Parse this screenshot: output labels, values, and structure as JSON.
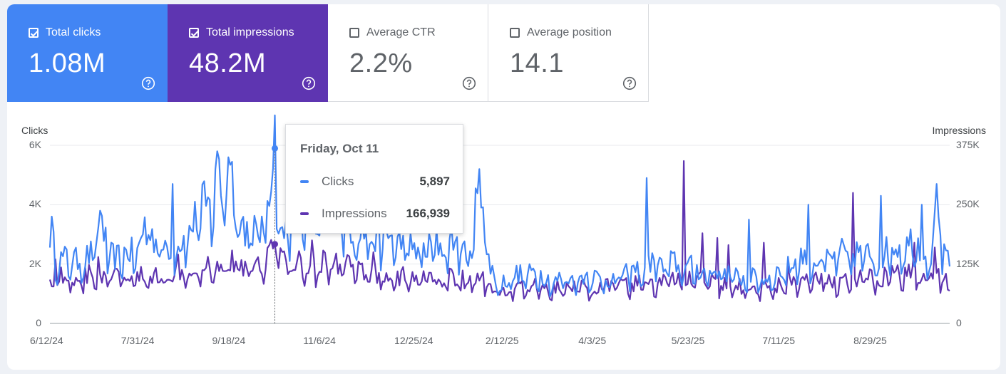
{
  "metrics": [
    {
      "label": "Total clicks",
      "value": "1.08M",
      "checked": true,
      "color": "#4285f4"
    },
    {
      "label": "Total impressions",
      "value": "48.2M",
      "checked": true,
      "color": "#5e35b1"
    },
    {
      "label": "Average CTR",
      "value": "2.2%",
      "checked": false,
      "color": "#ffffff"
    },
    {
      "label": "Average position",
      "value": "14.1",
      "checked": false,
      "color": "#ffffff"
    }
  ],
  "icons": {
    "checkbox": "check-icon",
    "help": "help-circle-icon"
  },
  "tooltip": {
    "date": "Friday, Oct 11",
    "rows": [
      {
        "label": "Clicks",
        "value": "5,897",
        "color": "#4285f4"
      },
      {
        "label": "Impressions",
        "value": "166,939",
        "color": "#5e35b1"
      }
    ]
  },
  "chart_data": {
    "type": "line",
    "left_axis_label": "Clicks",
    "right_axis_label": "Impressions",
    "left_ticks": [
      "0",
      "2K",
      "4K",
      "6K"
    ],
    "right_ticks": [
      "0",
      "125K",
      "250K",
      "375K"
    ],
    "left_range": [
      0,
      6000
    ],
    "right_range": [
      0,
      375000
    ],
    "x_range": [
      "2024-06-12",
      "2025-10-09"
    ],
    "x_ticks": [
      {
        "date": "2024-06-12",
        "label": "6/12/24"
      },
      {
        "date": "2024-07-31",
        "label": "7/31/24"
      },
      {
        "date": "2024-09-18",
        "label": "9/18/24"
      },
      {
        "date": "2024-11-06",
        "label": "11/6/24"
      },
      {
        "date": "2024-12-25",
        "label": "12/25/24"
      },
      {
        "date": "2025-02-12",
        "label": "2/12/25"
      },
      {
        "date": "2025-04-03",
        "label": "4/3/25"
      },
      {
        "date": "2025-05-23",
        "label": "5/23/25"
      },
      {
        "date": "2025-07-11",
        "label": "7/11/25"
      },
      {
        "date": "2025-08-29",
        "label": "8/29/25"
      }
    ],
    "grid": true,
    "highlight": {
      "date": "2024-10-11",
      "clicks": 5897,
      "impressions": 166939
    },
    "series": [
      {
        "name": "Clicks",
        "axis": "left",
        "color": "#4285f4",
        "points": [
          [
            "2024-06-12",
            2900
          ],
          [
            "2024-06-16",
            2000
          ],
          [
            "2024-06-21",
            2100
          ],
          [
            "2024-06-26",
            2000
          ],
          [
            "2024-07-01",
            2100
          ],
          [
            "2024-07-06",
            2300
          ],
          [
            "2024-07-09",
            3800
          ],
          [
            "2024-07-13",
            2200
          ],
          [
            "2024-07-18",
            2100
          ],
          [
            "2024-07-24",
            2300
          ],
          [
            "2024-07-29",
            2200
          ],
          [
            "2024-08-03",
            3500
          ],
          [
            "2024-08-08",
            2600
          ],
          [
            "2024-08-13",
            2500
          ],
          [
            "2024-08-18",
            2400
          ],
          [
            "2024-08-23",
            2700
          ],
          [
            "2024-08-28",
            3200
          ],
          [
            "2024-09-02",
            3800
          ],
          [
            "2024-09-07",
            3600
          ],
          [
            "2024-09-10",
            5800
          ],
          [
            "2024-09-13",
            3800
          ],
          [
            "2024-09-16",
            5600
          ],
          [
            "2024-09-20",
            3800
          ],
          [
            "2024-09-25",
            3000
          ],
          [
            "2024-09-30",
            2900
          ],
          [
            "2024-10-05",
            3100
          ],
          [
            "2024-10-11",
            5897
          ],
          [
            "2024-10-14",
            2700
          ],
          [
            "2024-10-19",
            3200
          ],
          [
            "2024-10-22",
            5600
          ],
          [
            "2024-10-27",
            3300
          ],
          [
            "2024-11-01",
            3100
          ],
          [
            "2024-11-06",
            3200
          ],
          [
            "2024-11-11",
            4800
          ],
          [
            "2024-11-16",
            3400
          ],
          [
            "2024-11-21",
            3100
          ],
          [
            "2024-11-26",
            3000
          ],
          [
            "2024-12-01",
            2800
          ],
          [
            "2024-12-06",
            2700
          ],
          [
            "2024-12-11",
            2800
          ],
          [
            "2024-12-16",
            2600
          ],
          [
            "2024-12-21",
            2500
          ],
          [
            "2024-12-26",
            2400
          ],
          [
            "2024-12-31",
            2300
          ],
          [
            "2025-01-05",
            2600
          ],
          [
            "2025-01-10",
            2400
          ],
          [
            "2025-01-15",
            2700
          ],
          [
            "2025-01-20",
            2300
          ],
          [
            "2025-01-25",
            2300
          ],
          [
            "2025-01-29",
            5200
          ],
          [
            "2025-02-03",
            2000
          ],
          [
            "2025-02-08",
            1200
          ],
          [
            "2025-02-13",
            1400
          ],
          [
            "2025-02-18",
            1600
          ],
          [
            "2025-02-23",
            1500
          ],
          [
            "2025-02-28",
            1700
          ],
          [
            "2025-03-05",
            1500
          ],
          [
            "2025-03-10",
            1300
          ],
          [
            "2025-03-15",
            1500
          ],
          [
            "2025-03-20",
            1400
          ],
          [
            "2025-03-25",
            1500
          ],
          [
            "2025-03-30",
            1600
          ],
          [
            "2025-04-04",
            1400
          ],
          [
            "2025-04-08",
            1400
          ],
          [
            "2025-04-13",
            1500
          ],
          [
            "2025-04-18",
            1600
          ],
          [
            "2025-04-23",
            1700
          ],
          [
            "2025-04-28",
            1600
          ],
          [
            "2025-05-03",
            2200
          ],
          [
            "2025-05-08",
            1700
          ],
          [
            "2025-05-13",
            2000
          ],
          [
            "2025-05-18",
            1800
          ],
          [
            "2025-05-23",
            1800
          ],
          [
            "2025-05-28",
            1700
          ],
          [
            "2025-06-02",
            1600
          ],
          [
            "2025-06-07",
            1800
          ],
          [
            "2025-06-12",
            1600
          ],
          [
            "2025-06-17",
            1500
          ],
          [
            "2025-06-22",
            1400
          ],
          [
            "2025-06-27",
            1500
          ],
          [
            "2025-07-02",
            1400
          ],
          [
            "2025-07-07",
            1600
          ],
          [
            "2025-07-12",
            1700
          ],
          [
            "2025-07-17",
            1900
          ],
          [
            "2025-07-22",
            2200
          ],
          [
            "2025-07-27",
            2000
          ],
          [
            "2025-08-01",
            2100
          ],
          [
            "2025-08-06",
            2000
          ],
          [
            "2025-08-11",
            2300
          ],
          [
            "2025-08-16",
            2100
          ],
          [
            "2025-08-21",
            2300
          ],
          [
            "2025-08-26",
            2200
          ],
          [
            "2025-08-31",
            2100
          ],
          [
            "2025-09-05",
            2300
          ],
          [
            "2025-09-10",
            2500
          ],
          [
            "2025-09-15",
            2400
          ],
          [
            "2025-09-20",
            2800
          ],
          [
            "2025-09-25",
            2200
          ],
          [
            "2025-09-30",
            2300
          ],
          [
            "2025-10-02",
            4700
          ],
          [
            "2025-10-05",
            2200
          ],
          [
            "2025-10-09",
            1850
          ]
        ],
        "spikes": [
          [
            "2024-06-13",
            3600
          ],
          [
            "2024-07-09",
            3800
          ],
          [
            "2024-08-17",
            4700
          ],
          [
            "2024-09-10",
            5800
          ],
          [
            "2024-09-16",
            5600
          ],
          [
            "2024-10-22",
            5600
          ],
          [
            "2024-12-09",
            3800
          ],
          [
            "2025-01-29",
            5200
          ],
          [
            "2025-04-29",
            4900
          ],
          [
            "2025-06-23",
            3500
          ],
          [
            "2025-07-25",
            4000
          ],
          [
            "2025-09-02",
            4300
          ],
          [
            "2025-09-24",
            4000
          ],
          [
            "2025-10-02",
            4700
          ]
        ]
      },
      {
        "name": "Impressions",
        "axis": "right",
        "color": "#5e35b1",
        "points": [
          [
            "2024-06-12",
            86000
          ],
          [
            "2024-06-17",
            98000
          ],
          [
            "2024-06-22",
            92000
          ],
          [
            "2024-06-27",
            90000
          ],
          [
            "2024-07-02",
            95000
          ],
          [
            "2024-07-07",
            100000
          ],
          [
            "2024-07-12",
            88000
          ],
          [
            "2024-07-17",
            96000
          ],
          [
            "2024-07-22",
            92000
          ],
          [
            "2024-07-27",
            90000
          ],
          [
            "2024-08-01",
            95000
          ],
          [
            "2024-08-06",
            93000
          ],
          [
            "2024-08-11",
            98000
          ],
          [
            "2024-08-16",
            104000
          ],
          [
            "2024-08-21",
            110000
          ],
          [
            "2024-08-26",
            112000
          ],
          [
            "2024-08-31",
            115000
          ],
          [
            "2024-09-05",
            122000
          ],
          [
            "2024-09-10",
            118000
          ],
          [
            "2024-09-15",
            125000
          ],
          [
            "2024-09-20",
            120000
          ],
          [
            "2024-09-25",
            116000
          ],
          [
            "2024-09-30",
            120000
          ],
          [
            "2024-10-05",
            124000
          ],
          [
            "2024-10-11",
            166939
          ],
          [
            "2024-10-16",
            125000
          ],
          [
            "2024-10-21",
            118000
          ],
          [
            "2024-10-26",
            122000
          ],
          [
            "2024-10-31",
            115000
          ],
          [
            "2024-11-05",
            120000
          ],
          [
            "2024-11-10",
            125000
          ],
          [
            "2024-11-15",
            118000
          ],
          [
            "2024-11-20",
            112000
          ],
          [
            "2024-11-25",
            105000
          ],
          [
            "2024-11-30",
            100000
          ],
          [
            "2024-12-05",
            98000
          ],
          [
            "2024-12-10",
            94000
          ],
          [
            "2024-12-15",
            96000
          ],
          [
            "2024-12-20",
            92000
          ],
          [
            "2024-12-25",
            90000
          ],
          [
            "2024-12-30",
            92000
          ],
          [
            "2025-01-04",
            94000
          ],
          [
            "2025-01-09",
            90000
          ],
          [
            "2025-01-14",
            92000
          ],
          [
            "2025-01-19",
            88000
          ],
          [
            "2025-01-24",
            86000
          ],
          [
            "2025-01-29",
            90000
          ],
          [
            "2025-02-03",
            80000
          ],
          [
            "2025-02-08",
            66000
          ],
          [
            "2025-02-13",
            70000
          ],
          [
            "2025-02-18",
            72000
          ],
          [
            "2025-02-23",
            70000
          ],
          [
            "2025-02-28",
            74000
          ],
          [
            "2025-03-05",
            72000
          ],
          [
            "2025-03-10",
            70000
          ],
          [
            "2025-03-15",
            73000
          ],
          [
            "2025-03-20",
            71000
          ],
          [
            "2025-03-25",
            72000
          ],
          [
            "2025-03-30",
            74000
          ],
          [
            "2025-04-04",
            72000
          ],
          [
            "2025-04-09",
            76000
          ],
          [
            "2025-04-14",
            78000
          ],
          [
            "2025-04-19",
            76000
          ],
          [
            "2025-04-24",
            80000
          ],
          [
            "2025-04-29",
            78000
          ],
          [
            "2025-05-04",
            82000
          ],
          [
            "2025-05-09",
            86000
          ],
          [
            "2025-05-14",
            88000
          ],
          [
            "2025-05-19",
            90000
          ],
          [
            "2025-05-24",
            86000
          ],
          [
            "2025-05-29",
            84000
          ],
          [
            "2025-06-03",
            82000
          ],
          [
            "2025-06-08",
            80000
          ],
          [
            "2025-06-13",
            78000
          ],
          [
            "2025-06-18",
            74000
          ],
          [
            "2025-06-23",
            72000
          ],
          [
            "2025-06-28",
            70000
          ],
          [
            "2025-07-03",
            72000
          ],
          [
            "2025-07-08",
            76000
          ],
          [
            "2025-07-13",
            78000
          ],
          [
            "2025-07-18",
            80000
          ],
          [
            "2025-07-23",
            82000
          ],
          [
            "2025-07-28",
            84000
          ],
          [
            "2025-08-02",
            86000
          ],
          [
            "2025-08-07",
            84000
          ],
          [
            "2025-08-12",
            86000
          ],
          [
            "2025-08-17",
            88000
          ],
          [
            "2025-08-22",
            90000
          ],
          [
            "2025-08-27",
            92000
          ],
          [
            "2025-09-01",
            90000
          ],
          [
            "2025-09-06",
            94000
          ],
          [
            "2025-09-11",
            96000
          ],
          [
            "2025-09-16",
            98000
          ],
          [
            "2025-09-21",
            100000
          ],
          [
            "2025-09-26",
            102000
          ],
          [
            "2025-10-01",
            98000
          ],
          [
            "2025-10-05",
            95000
          ],
          [
            "2025-10-09",
            72000
          ]
        ],
        "spikes": [
          [
            "2024-06-15",
            135000
          ],
          [
            "2024-07-08",
            140000
          ],
          [
            "2024-08-20",
            145000
          ],
          [
            "2024-10-11",
            166939
          ],
          [
            "2024-10-31",
            175000
          ],
          [
            "2024-12-03",
            150000
          ],
          [
            "2025-05-19",
            342000
          ],
          [
            "2025-05-29",
            190000
          ],
          [
            "2025-06-06",
            180000
          ],
          [
            "2025-06-12",
            165000
          ],
          [
            "2025-07-01",
            170000
          ],
          [
            "2025-07-14",
            120000
          ],
          [
            "2025-08-18",
            275000
          ],
          [
            "2025-09-20",
            170000
          ],
          [
            "2025-10-01",
            160000
          ]
        ]
      }
    ]
  }
}
